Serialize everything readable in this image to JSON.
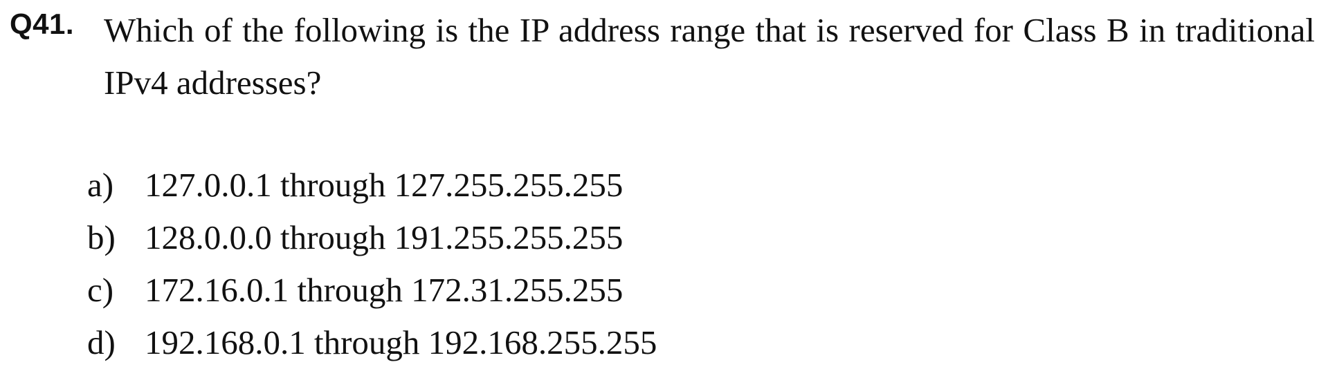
{
  "question": {
    "number": "Q41.",
    "text": "Which of the following is the IP address range that is reserved for Class B in traditional IPv4 addresses?"
  },
  "options": [
    {
      "letter": "a)",
      "text": "127.0.0.1 through 127.255.255.255"
    },
    {
      "letter": "b)",
      "text": "128.0.0.0 through 191.255.255.255"
    },
    {
      "letter": "c)",
      "text": "172.16.0.1 through 172.31.255.255"
    },
    {
      "letter": "d)",
      "text": "192.168.0.1 through 192.168.255.255"
    }
  ]
}
